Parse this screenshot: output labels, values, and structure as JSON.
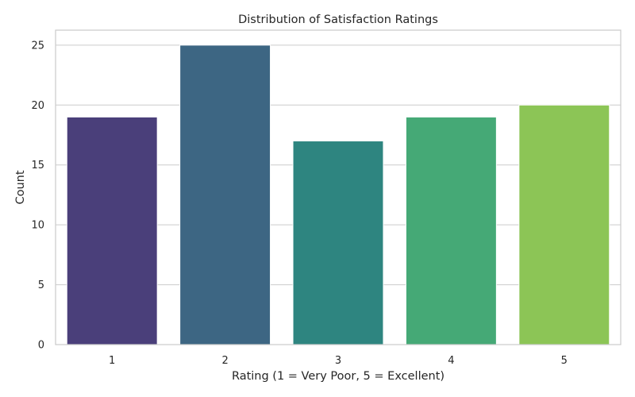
{
  "chart_data": {
    "type": "bar",
    "title": "Distribution of Satisfaction Ratings",
    "xlabel": "Rating (1 = Very Poor, 5 = Excellent)",
    "ylabel": "Count",
    "categories": [
      "1",
      "2",
      "3",
      "4",
      "5"
    ],
    "values": [
      19,
      25,
      17,
      19,
      20
    ],
    "colors": [
      "#4a3f7a",
      "#3d6683",
      "#2e8580",
      "#45a976",
      "#8cc556"
    ],
    "ylim": [
      0,
      26.25
    ],
    "yticks": [
      0,
      5,
      10,
      15,
      20,
      25
    ],
    "grid": true,
    "legend": "none"
  }
}
